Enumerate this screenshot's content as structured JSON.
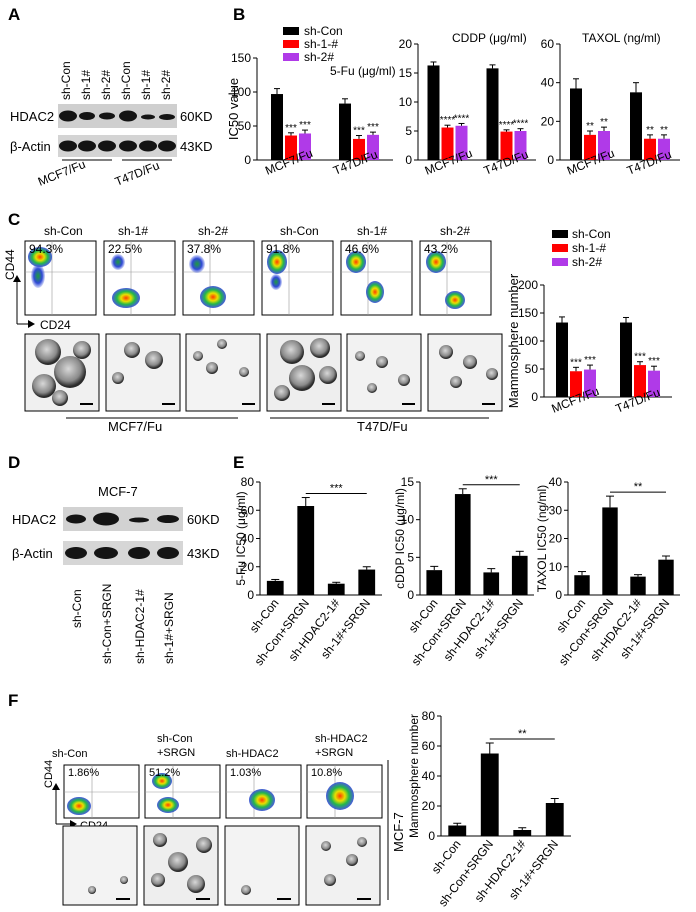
{
  "colors": {
    "con": "#000000",
    "sh1": "#ff0000",
    "sh2": "#b03ae8"
  },
  "panelA": {
    "letter": "A",
    "lanes": [
      "sh-Con",
      "sh-1#",
      "sh-2#",
      "sh-Con",
      "sh-1#",
      "sh-2#"
    ],
    "rows": [
      "HDAC2",
      "β-Actin"
    ],
    "kd": [
      "60KD",
      "43KD"
    ],
    "groups": [
      "MCF7/Fu",
      "T47D/Fu"
    ]
  },
  "panelB": {
    "letter": "B",
    "legend": [
      "sh-Con",
      "sh-1-#",
      "sh-2#"
    ]
  },
  "panelC": {
    "letter": "C",
    "flowLabels": [
      "sh-Con",
      "sh-1#",
      "sh-2#",
      "sh-Con",
      "sh-1#",
      "sh-2#"
    ],
    "percents": [
      "94.3%",
      "22.5%",
      "37.8%",
      "91.8%",
      "46.6%",
      "43.2%"
    ],
    "axisY": "CD44",
    "axisX": "CD24",
    "groups": [
      "MCF7/Fu",
      "T47D/Fu"
    ],
    "legend": [
      "sh-Con",
      "sh-1-#",
      "sh-2#"
    ]
  },
  "panelD": {
    "letter": "D",
    "title": "MCF-7",
    "rows": [
      "HDAC2",
      "β-Actin"
    ],
    "kd": [
      "60KD",
      "43KD"
    ],
    "lanes": [
      "sh-Con",
      "sh-Con+SRGN",
      "sh-HDAC2-1#",
      "sh-1#+SRGN"
    ]
  },
  "panelE": {
    "letter": "E"
  },
  "panelF": {
    "letter": "F",
    "labels": [
      "sh-Con",
      "sh-Con\n+SRGN",
      "sh-HDAC2",
      "sh-HDAC2\n+SRGN"
    ],
    "percents": [
      "1.86%",
      "51.2%",
      "1.03%",
      "10.8%"
    ],
    "axisY": "CD44",
    "axisX": "CD24",
    "side": "MCF-7"
  },
  "chart_data": [
    {
      "id": "B1",
      "type": "bar",
      "title": "5-Fu (μg/ml)",
      "ylabel": "IC50 value",
      "ylim": [
        0,
        150
      ],
      "yticks": [
        0,
        50,
        100,
        150
      ],
      "categories": [
        "MCF7/Fu",
        "T47D/Fu"
      ],
      "series": [
        {
          "name": "sh-Con",
          "values": [
            97,
            83
          ],
          "err": [
            8,
            7
          ]
        },
        {
          "name": "sh-1-#",
          "values": [
            36,
            31
          ],
          "err": [
            4,
            5
          ]
        },
        {
          "name": "sh-2#",
          "values": [
            39,
            37
          ],
          "err": [
            5,
            4
          ]
        }
      ],
      "sig": [
        [
          "",
          "***",
          "***"
        ],
        [
          "",
          "***",
          "***"
        ]
      ]
    },
    {
      "id": "B2",
      "type": "bar",
      "title": "CDDP (μg/ml)",
      "ylabel": "",
      "ylim": [
        0,
        20
      ],
      "yticks": [
        0,
        5,
        10,
        15,
        20
      ],
      "categories": [
        "MCF7/Fu",
        "T47D/Fu"
      ],
      "series": [
        {
          "name": "sh-Con",
          "values": [
            16.3,
            15.8
          ],
          "err": [
            0.6,
            0.6
          ]
        },
        {
          "name": "sh-1-#",
          "values": [
            5.6,
            4.9
          ],
          "err": [
            0.4,
            0.3
          ]
        },
        {
          "name": "sh-2#",
          "values": [
            5.9,
            5.0
          ],
          "err": [
            0.4,
            0.4
          ]
        }
      ],
      "sig": [
        [
          "",
          "****",
          "****"
        ],
        [
          "",
          "****",
          "****"
        ]
      ]
    },
    {
      "id": "B3",
      "type": "bar",
      "title": "TAXOL (ng/ml)",
      "ylabel": "",
      "ylim": [
        0,
        60
      ],
      "yticks": [
        0,
        20,
        40,
        60
      ],
      "categories": [
        "MCF7/Fu",
        "T47D/Fu"
      ],
      "series": [
        {
          "name": "sh-Con",
          "values": [
            37,
            35
          ],
          "err": [
            5,
            5
          ]
        },
        {
          "name": "sh-1-#",
          "values": [
            13,
            11
          ],
          "err": [
            2,
            2
          ]
        },
        {
          "name": "sh-2#",
          "values": [
            15,
            11
          ],
          "err": [
            2,
            2
          ]
        }
      ],
      "sig": [
        [
          "",
          "**",
          "**"
        ],
        [
          "",
          "**",
          "**"
        ]
      ]
    },
    {
      "id": "C",
      "type": "bar",
      "title": "",
      "ylabel": "Mammosphere number",
      "ylim": [
        0,
        200
      ],
      "yticks": [
        0,
        50,
        100,
        150,
        200
      ],
      "categories": [
        "MCF7/Fu",
        "T47D/Fu"
      ],
      "series": [
        {
          "name": "sh-Con",
          "values": [
            133,
            133
          ],
          "err": [
            10,
            9
          ]
        },
        {
          "name": "sh-1-#",
          "values": [
            46,
            57
          ],
          "err": [
            7,
            6
          ]
        },
        {
          "name": "sh-2#",
          "values": [
            49,
            47
          ],
          "err": [
            8,
            8
          ]
        }
      ],
      "sig": [
        [
          "",
          "***",
          "***"
        ],
        [
          "",
          "***",
          "***"
        ]
      ]
    },
    {
      "id": "E1",
      "type": "bar",
      "ylabel": "5-Fu IC50 (μg/ml)",
      "ylim": [
        0,
        80
      ],
      "yticks": [
        0,
        20,
        40,
        60,
        80
      ],
      "categories": [
        "sh-Con",
        "sh-Con+SRGN",
        "sh-HDAC2-1#",
        "sh-1#+SRGN"
      ],
      "values": [
        10,
        63,
        8,
        18
      ],
      "err": [
        1,
        6,
        1,
        2
      ],
      "bracket": "***"
    },
    {
      "id": "E2",
      "type": "bar",
      "ylabel": "cDDP IC50 (μg/ml)",
      "ylim": [
        0,
        15
      ],
      "yticks": [
        0,
        5,
        10,
        15
      ],
      "categories": [
        "sh-Con",
        "sh-Con+SRGN",
        "sh-HDAC2-1#",
        "sh-1#+SRGN"
      ],
      "values": [
        3.3,
        13.4,
        3.0,
        5.2
      ],
      "err": [
        0.5,
        0.7,
        0.5,
        0.6
      ],
      "bracket": "***"
    },
    {
      "id": "E3",
      "type": "bar",
      "ylabel": "TAXOL IC50 (ng/ml)",
      "ylim": [
        0,
        40
      ],
      "yticks": [
        0,
        10,
        20,
        30,
        40
      ],
      "categories": [
        "sh-Con",
        "sh-Con+SRGN",
        "sh-HDAC2-1#",
        "sh-1#+SRGN"
      ],
      "values": [
        7,
        31,
        6.5,
        12.5
      ],
      "err": [
        1.3,
        4,
        0.7,
        1.3
      ],
      "bracket": "**"
    },
    {
      "id": "F",
      "type": "bar",
      "ylabel": "Mammosphere number",
      "ylim": [
        0,
        80
      ],
      "yticks": [
        0,
        20,
        40,
        60,
        80
      ],
      "categories": [
        "sh-Con",
        "sh-Con+SRGN",
        "sh-HDAC2-1#",
        "sh-1#+SRGN"
      ],
      "values": [
        7,
        55,
        4,
        22
      ],
      "err": [
        1.5,
        7,
        1.5,
        3
      ],
      "bracket": "**"
    }
  ]
}
